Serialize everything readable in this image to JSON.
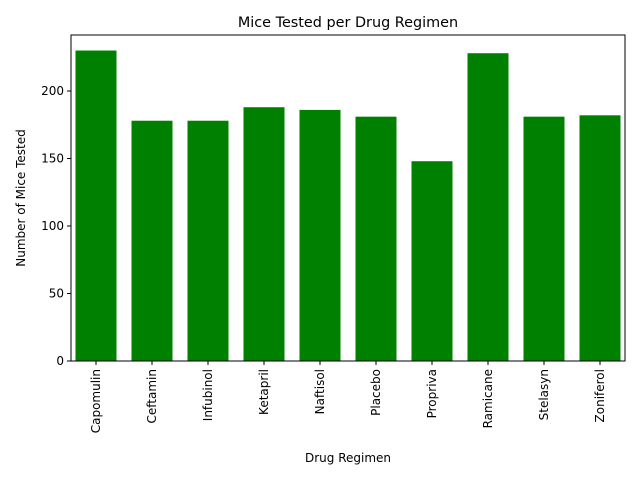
{
  "chart_data": {
    "type": "bar",
    "title": "Mice Tested per Drug Regimen",
    "xlabel": "Drug Regimen",
    "ylabel": "Number of Mice Tested",
    "categories": [
      "Capomulin",
      "Ceftamin",
      "Infubinol",
      "Ketapril",
      "Naftisol",
      "Placebo",
      "Propriva",
      "Ramicane",
      "Stelasyn",
      "Zoniferol"
    ],
    "values": [
      230,
      178,
      178,
      188,
      186,
      181,
      148,
      228,
      181,
      182
    ],
    "yticks": [
      "0",
      "50",
      "100",
      "150",
      "200"
    ],
    "ylim": [
      0,
      241.5
    ],
    "bar_color": "#008000",
    "grid": false,
    "legend": "none"
  }
}
